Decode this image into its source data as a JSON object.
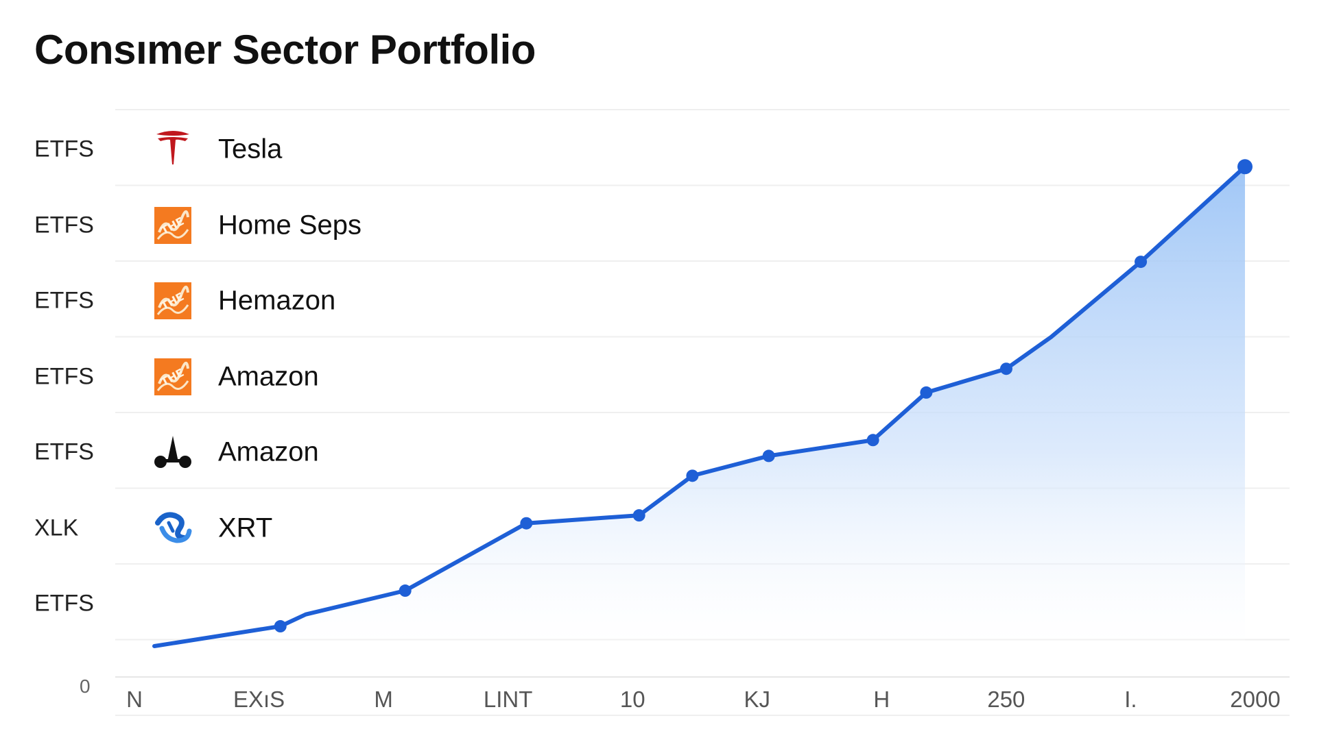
{
  "title": "Consımer Sector Portfolio",
  "chart_data": {
    "type": "area",
    "title": "Consımer Sector Portfolio",
    "rows": [
      {
        "label": "ETFS",
        "name": "Tesla",
        "logo": "tesla-logo-icon"
      },
      {
        "label": "ETFS",
        "name": "Home Seps",
        "logo": "orange-square-logo-icon"
      },
      {
        "label": "ETFS",
        "name": "Hemazon",
        "logo": "orange-square-logo-icon"
      },
      {
        "label": "ETFS",
        "name": "Amazon",
        "logo": "orange-square-logo-icon"
      },
      {
        "label": "ETFS",
        "name": "Amazon",
        "logo": "black-figure-logo-icon"
      },
      {
        "label": "XLK",
        "name": "XRT",
        "logo": "blue-swirl-logo-icon"
      },
      {
        "label": "ETFS",
        "name": "",
        "logo": ""
      }
    ],
    "x_tick_labels": [
      "N",
      "EXıS",
      "M",
      "LINT",
      "10",
      "KJ",
      "H",
      "250",
      "I.",
      "2000"
    ],
    "y_origin_label": "0",
    "series": [
      {
        "name": "portfolio",
        "points": [
          {
            "x": 0.0,
            "y": 0.3,
            "marker": false
          },
          {
            "x": 1.04,
            "y": 0.55,
            "marker": true
          },
          {
            "x": 1.25,
            "y": 0.7,
            "marker": false
          },
          {
            "x": 2.07,
            "y": 1.0,
            "marker": true
          },
          {
            "x": 3.07,
            "y": 1.85,
            "marker": true
          },
          {
            "x": 4.0,
            "y": 1.95,
            "marker": true
          },
          {
            "x": 4.44,
            "y": 2.45,
            "marker": true
          },
          {
            "x": 5.07,
            "y": 2.7,
            "marker": true
          },
          {
            "x": 5.93,
            "y": 2.9,
            "marker": true
          },
          {
            "x": 6.37,
            "y": 3.5,
            "marker": true
          },
          {
            "x": 7.03,
            "y": 3.8,
            "marker": true
          },
          {
            "x": 7.4,
            "y": 4.2,
            "marker": false
          },
          {
            "x": 8.14,
            "y": 5.15,
            "marker": true
          },
          {
            "x": 9.0,
            "y": 6.35,
            "marker": true
          }
        ]
      }
    ],
    "xlim": [
      0,
      9
    ],
    "ylim": [
      -0.15,
      7.2
    ],
    "grid": true,
    "colors": {
      "line": "#1e5fd6",
      "fill": "#9cc6f7",
      "grid": "#efefef"
    }
  }
}
